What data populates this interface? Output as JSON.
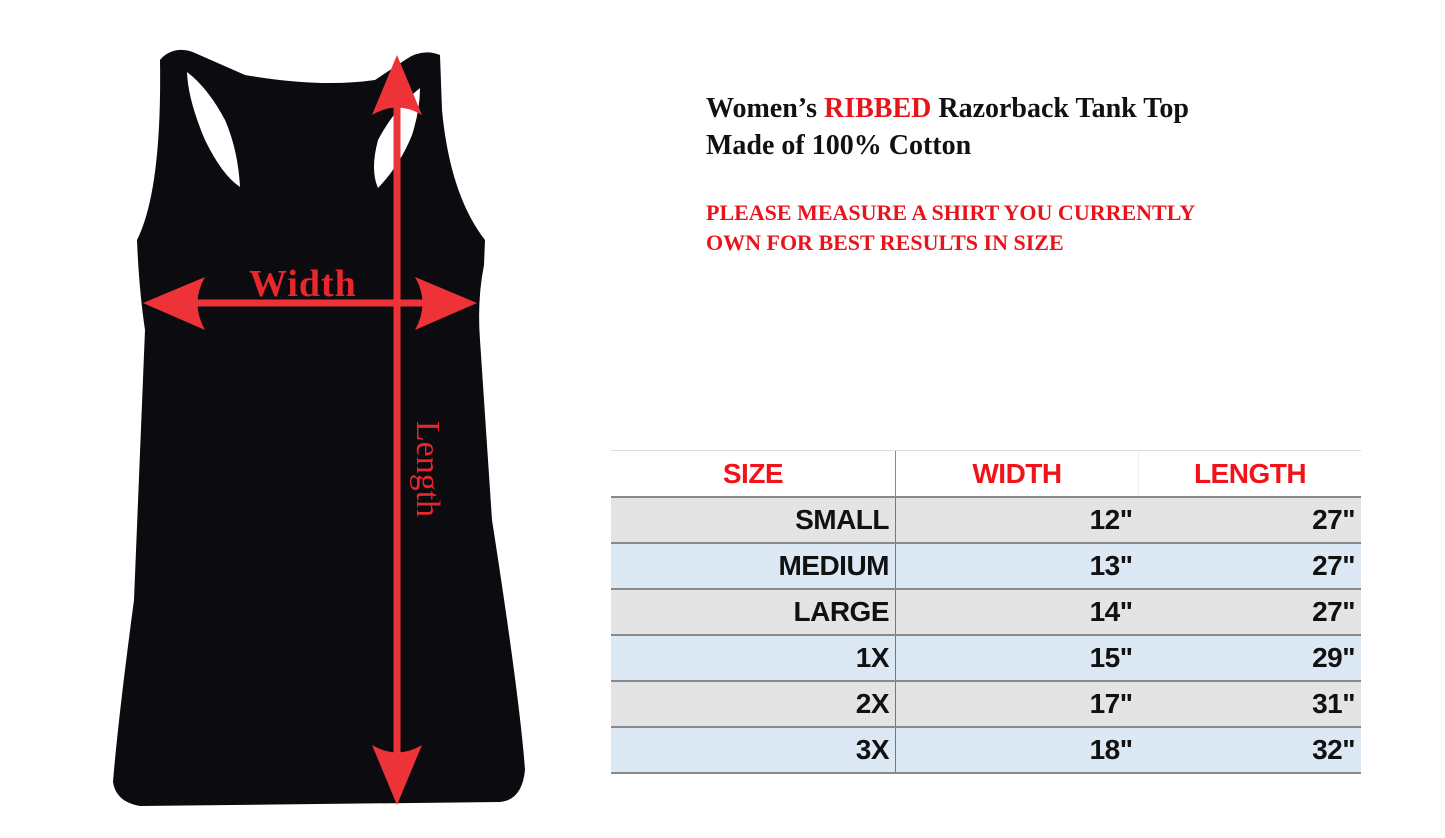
{
  "product": {
    "title_prefix": "Women’s ",
    "title_highlight": "RIBBED",
    "title_suffix": " Razorback Tank Top",
    "material": "Made of 100% Cotton",
    "notice_line1": "PLEASE MEASURE A SHIRT YOU CURRENTLY",
    "notice_line2": "OWN FOR BEST RESULTS IN SIZE"
  },
  "diagram": {
    "width_label": "Width",
    "length_label": "Length",
    "garment_color": "#0b0b10",
    "arrow_color": "#ee3338"
  },
  "size_table": {
    "headers": [
      "SIZE",
      "WIDTH",
      "LENGTH"
    ],
    "rows": [
      [
        "SMALL",
        "12\"",
        "27\""
      ],
      [
        "MEDIUM",
        "13\"",
        "27\""
      ],
      [
        "LARGE",
        "14\"",
        "27\""
      ],
      [
        "1X",
        "15\"",
        "29\""
      ],
      [
        "2X",
        "17\"",
        "31\""
      ],
      [
        "3X",
        "18\"",
        "32\""
      ]
    ],
    "header_color": "#f0141a",
    "row_colors": [
      "#e4e4e4",
      "#dce9f5"
    ]
  }
}
